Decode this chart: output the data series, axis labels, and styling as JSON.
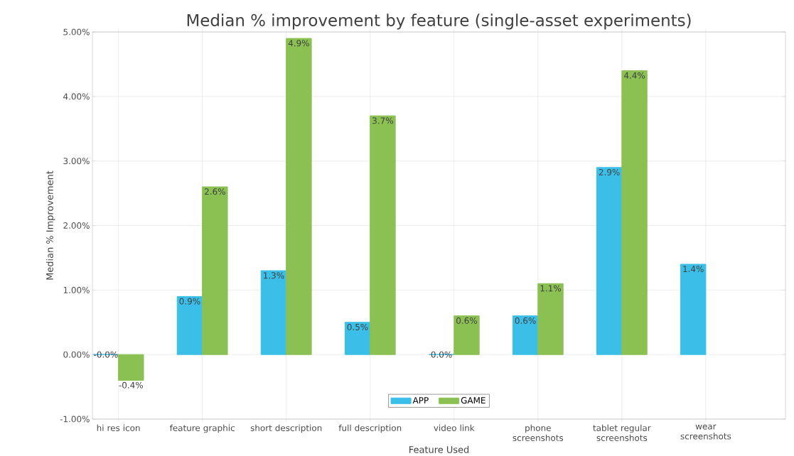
{
  "chart_data": {
    "type": "bar",
    "title": "Median % improvement by feature (single-asset experiments)",
    "xlabel": "Feature Used",
    "ylabel": "Median % Improvement",
    "categories": [
      "hi res icon",
      "feature graphic",
      "short description",
      "full description",
      "video link",
      "phone screenshots",
      "tablet regular screenshots",
      "wear screenshots"
    ],
    "series": [
      {
        "name": "APP",
        "color": "#3bbfe8",
        "values": [
          -0.0,
          0.9,
          1.3,
          0.5,
          0.0,
          0.6,
          2.9,
          1.4
        ],
        "value_labels": [
          "-0.0%",
          "0.9%",
          "1.3%",
          "0.5%",
          "0.0%",
          "0.6%",
          "2.9%",
          "1.4%"
        ]
      },
      {
        "name": "GAME",
        "color": "#8bc152",
        "values": [
          -0.4,
          2.6,
          4.9,
          3.7,
          0.6,
          1.1,
          4.4,
          null
        ],
        "value_labels": [
          "-0.4%",
          "2.6%",
          "4.9%",
          "3.7%",
          "0.6%",
          "1.1%",
          "4.4%",
          null
        ]
      }
    ],
    "ylim": [
      -1,
      5
    ],
    "yticks": [
      {
        "value": -1,
        "label": "-1.00%"
      },
      {
        "value": 0,
        "label": "0.00%"
      },
      {
        "value": 1,
        "label": "1.00%"
      },
      {
        "value": 2,
        "label": "2.00%"
      },
      {
        "value": 3,
        "label": "3.00%"
      },
      {
        "value": 4,
        "label": "4.00%"
      },
      {
        "value": 5,
        "label": "5.00%"
      }
    ],
    "grid": true,
    "legend": "bottom"
  }
}
